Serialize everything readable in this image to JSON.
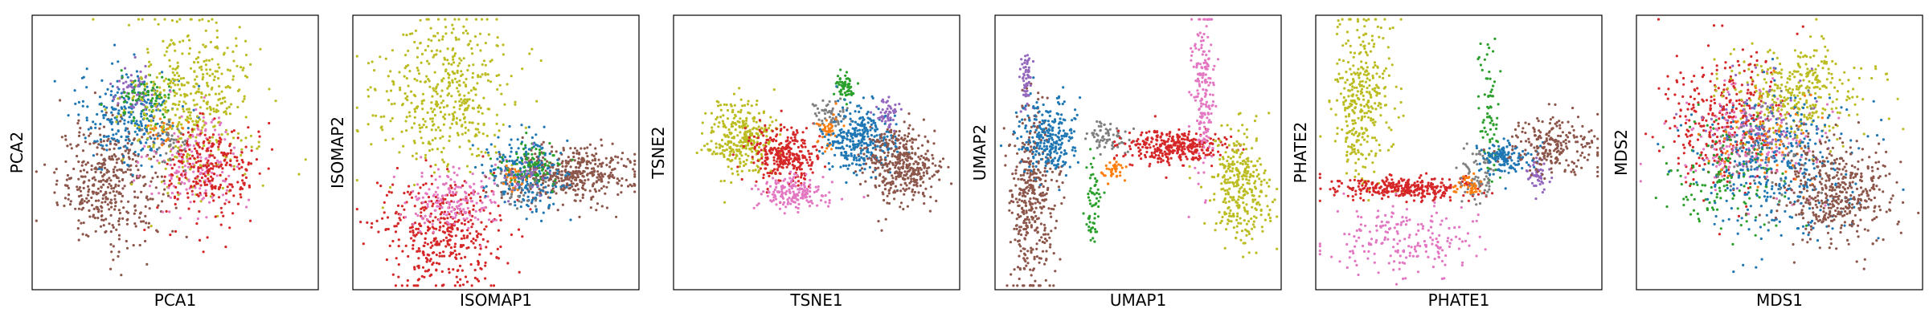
{
  "chart_data": [
    {
      "type": "scatter",
      "xlabel": "PCA1",
      "ylabel": "PCA2",
      "clusters": [
        {
          "color": "#8c564b",
          "center": [
            0.27,
            0.39
          ],
          "spread": [
            0.09,
            0.11
          ],
          "count": 420
        },
        {
          "color": "#1f77b4",
          "center": [
            0.34,
            0.64
          ],
          "spread": [
            0.09,
            0.09
          ],
          "count": 260
        },
        {
          "color": "#9467bd",
          "center": [
            0.36,
            0.72
          ],
          "spread": [
            0.04,
            0.04
          ],
          "count": 60
        },
        {
          "color": "#2ca02c",
          "center": [
            0.4,
            0.69
          ],
          "spread": [
            0.05,
            0.05
          ],
          "count": 80
        },
        {
          "color": "#bcbd22",
          "center": [
            0.56,
            0.68
          ],
          "spread": [
            0.11,
            0.15
          ],
          "count": 450
        },
        {
          "color": "#e377c2",
          "center": [
            0.57,
            0.46
          ],
          "spread": [
            0.08,
            0.08
          ],
          "count": 170
        },
        {
          "color": "#d62728",
          "center": [
            0.63,
            0.43
          ],
          "spread": [
            0.08,
            0.09
          ],
          "count": 260
        },
        {
          "color": "#7f7f7f",
          "center": [
            0.48,
            0.55
          ],
          "spread": [
            0.04,
            0.04
          ],
          "count": 40
        },
        {
          "color": "#ff7f0e",
          "center": [
            0.47,
            0.58
          ],
          "spread": [
            0.03,
            0.03
          ],
          "count": 20
        }
      ]
    },
    {
      "type": "scatter",
      "xlabel": "ISOMAP1",
      "ylabel": "ISOMAP2",
      "clusters": [
        {
          "color": "#bcbd22",
          "center": [
            0.32,
            0.72
          ],
          "spread": [
            0.12,
            0.14
          ],
          "count": 450
        },
        {
          "color": "#d62728",
          "center": [
            0.3,
            0.2
          ],
          "spread": [
            0.11,
            0.1
          ],
          "count": 420
        },
        {
          "color": "#e377c2",
          "center": [
            0.36,
            0.32
          ],
          "spread": [
            0.09,
            0.06
          ],
          "count": 170
        },
        {
          "color": "#8c564b",
          "center": [
            0.76,
            0.42
          ],
          "spread": [
            0.11,
            0.05
          ],
          "count": 420
        },
        {
          "color": "#1f77b4",
          "center": [
            0.6,
            0.42
          ],
          "spread": [
            0.07,
            0.07
          ],
          "count": 220
        },
        {
          "color": "#2ca02c",
          "center": [
            0.62,
            0.46
          ],
          "spread": [
            0.05,
            0.04
          ],
          "count": 90
        },
        {
          "color": "#7f7f7f",
          "center": [
            0.58,
            0.39
          ],
          "spread": [
            0.05,
            0.04
          ],
          "count": 40
        },
        {
          "color": "#9467bd",
          "center": [
            0.6,
            0.41
          ],
          "spread": [
            0.04,
            0.03
          ],
          "count": 30
        },
        {
          "color": "#ff7f0e",
          "center": [
            0.56,
            0.4
          ],
          "spread": [
            0.03,
            0.03
          ],
          "count": 20
        }
      ]
    },
    {
      "type": "scatter",
      "xlabel": "TSNE1",
      "ylabel": "TSNE2",
      "clusters": [
        {
          "color": "#bcbd22",
          "center": [
            0.24,
            0.55
          ],
          "spread": [
            0.06,
            0.07
          ],
          "count": 320
        },
        {
          "color": "#d62728",
          "center": [
            0.38,
            0.49
          ],
          "spread": [
            0.06,
            0.05
          ],
          "count": 300
        },
        {
          "color": "#e377c2",
          "center": [
            0.42,
            0.35
          ],
          "spread": [
            0.06,
            0.03
          ],
          "count": 170
        },
        {
          "color": "#2ca02c",
          "center": [
            0.6,
            0.74
          ],
          "spread": [
            0.02,
            0.03
          ],
          "count": 60
        },
        {
          "color": "#7f7f7f",
          "center": [
            0.55,
            0.64
          ],
          "spread": [
            0.03,
            0.03
          ],
          "count": 60
        },
        {
          "color": "#ff7f0e",
          "center": [
            0.54,
            0.58
          ],
          "spread": [
            0.02,
            0.03
          ],
          "count": 40
        },
        {
          "color": "#1f77b4",
          "center": [
            0.65,
            0.55
          ],
          "spread": [
            0.06,
            0.06
          ],
          "count": 320
        },
        {
          "color": "#9467bd",
          "center": [
            0.75,
            0.64
          ],
          "spread": [
            0.02,
            0.03
          ],
          "count": 50
        },
        {
          "color": "#8c564b",
          "center": [
            0.8,
            0.45
          ],
          "spread": [
            0.06,
            0.07
          ],
          "count": 400
        }
      ]
    },
    {
      "type": "scatter",
      "xlabel": "UMAP1",
      "ylabel": "UMAP2",
      "clusters": [
        {
          "color": "#8c564b",
          "center": [
            0.13,
            0.32
          ],
          "spread": [
            0.04,
            0.17
          ],
          "count": 400
        },
        {
          "color": "#9467bd",
          "center": [
            0.11,
            0.76
          ],
          "spread": [
            0.01,
            0.06
          ],
          "count": 60
        },
        {
          "color": "#1f77b4",
          "center": [
            0.18,
            0.55
          ],
          "spread": [
            0.05,
            0.07
          ],
          "count": 260
        },
        {
          "color": "#2ca02c",
          "center": [
            0.34,
            0.3
          ],
          "spread": [
            0.015,
            0.08
          ],
          "count": 60
        },
        {
          "color": "#7f7f7f",
          "center": [
            0.4,
            0.55
          ],
          "spread": [
            0.04,
            0.03
          ],
          "count": 70
        },
        {
          "color": "#ff7f0e",
          "center": [
            0.41,
            0.44
          ],
          "spread": [
            0.02,
            0.02
          ],
          "count": 40
        },
        {
          "color": "#d62728",
          "center": [
            0.62,
            0.52
          ],
          "spread": [
            0.09,
            0.03
          ],
          "count": 330
        },
        {
          "color": "#e377c2",
          "center": [
            0.73,
            0.72
          ],
          "spread": [
            0.02,
            0.15
          ],
          "count": 180
        },
        {
          "color": "#bcbd22",
          "center": [
            0.86,
            0.38
          ],
          "spread": [
            0.05,
            0.1
          ],
          "count": 320
        }
      ]
    },
    {
      "type": "scatter",
      "xlabel": "PHATE1",
      "ylabel": "PHATE2",
      "clusters": [
        {
          "color": "#bcbd22",
          "center": [
            0.16,
            0.7
          ],
          "spread": [
            0.05,
            0.16
          ],
          "count": 350
        },
        {
          "color": "#d62728",
          "center": [
            0.3,
            0.37
          ],
          "spread": [
            0.12,
            0.02
          ],
          "count": 320
        },
        {
          "color": "#e377c2",
          "center": [
            0.3,
            0.18
          ],
          "spread": [
            0.12,
            0.07
          ],
          "count": 200
        },
        {
          "color": "#2ca02c",
          "center": [
            0.61,
            0.62
          ],
          "spread": [
            0.02,
            0.12
          ],
          "count": 80
        },
        {
          "color": "#7f7f7f",
          "center": [
            0.57,
            0.42
          ],
          "spread": [
            0.03,
            0.05
          ],
          "count": 70
        },
        {
          "color": "#ff7f0e",
          "center": [
            0.54,
            0.38
          ],
          "spread": [
            0.02,
            0.02
          ],
          "count": 40
        },
        {
          "color": "#1f77b4",
          "center": [
            0.66,
            0.48
          ],
          "spread": [
            0.05,
            0.03
          ],
          "count": 140
        },
        {
          "color": "#9467bd",
          "center": [
            0.77,
            0.42
          ],
          "spread": [
            0.02,
            0.03
          ],
          "count": 50
        },
        {
          "color": "#8c564b",
          "center": [
            0.83,
            0.52
          ],
          "spread": [
            0.08,
            0.05
          ],
          "count": 220
        }
      ]
    },
    {
      "type": "scatter",
      "xlabel": "MDS1",
      "ylabel": "MDS2",
      "clusters": [
        {
          "color": "#d62728",
          "center": [
            0.3,
            0.63
          ],
          "spread": [
            0.1,
            0.12
          ],
          "count": 360
        },
        {
          "color": "#e377c2",
          "center": [
            0.4,
            0.55
          ],
          "spread": [
            0.12,
            0.1
          ],
          "count": 180
        },
        {
          "color": "#bcbd22",
          "center": [
            0.55,
            0.72
          ],
          "spread": [
            0.12,
            0.09
          ],
          "count": 340
        },
        {
          "color": "#2ca02c",
          "center": [
            0.32,
            0.4
          ],
          "spread": [
            0.1,
            0.1
          ],
          "count": 150
        },
        {
          "color": "#1f77b4",
          "center": [
            0.52,
            0.45
          ],
          "spread": [
            0.14,
            0.13
          ],
          "count": 360
        },
        {
          "color": "#9467bd",
          "center": [
            0.42,
            0.62
          ],
          "spread": [
            0.09,
            0.09
          ],
          "count": 80
        },
        {
          "color": "#7f7f7f",
          "center": [
            0.45,
            0.5
          ],
          "spread": [
            0.1,
            0.1
          ],
          "count": 70
        },
        {
          "color": "#ff7f0e",
          "center": [
            0.48,
            0.55
          ],
          "spread": [
            0.1,
            0.1
          ],
          "count": 60
        },
        {
          "color": "#8c564b",
          "center": [
            0.7,
            0.35
          ],
          "spread": [
            0.1,
            0.09
          ],
          "count": 440
        }
      ]
    }
  ]
}
